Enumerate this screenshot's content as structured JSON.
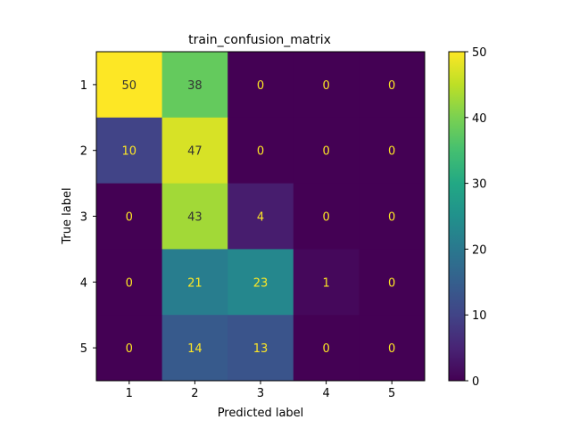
{
  "chart_data": {
    "type": "heatmap",
    "title": "train_confusion_matrix",
    "xlabel": "Predicted label",
    "ylabel": "True label",
    "x_categories": [
      "1",
      "2",
      "3",
      "4",
      "5"
    ],
    "y_categories": [
      "1",
      "2",
      "3",
      "4",
      "5"
    ],
    "values": [
      [
        50,
        38,
        0,
        0,
        0
      ],
      [
        10,
        47,
        0,
        0,
        0
      ],
      [
        0,
        43,
        4,
        0,
        0
      ],
      [
        0,
        21,
        23,
        1,
        0
      ],
      [
        0,
        14,
        13,
        0,
        0
      ]
    ],
    "colormap": "viridis",
    "vmin": 0,
    "vmax": 50,
    "colorbar_ticks": [
      0,
      10,
      20,
      30,
      40,
      50
    ],
    "light_text_color": "#fde725",
    "dark_text_color": "#333333"
  }
}
